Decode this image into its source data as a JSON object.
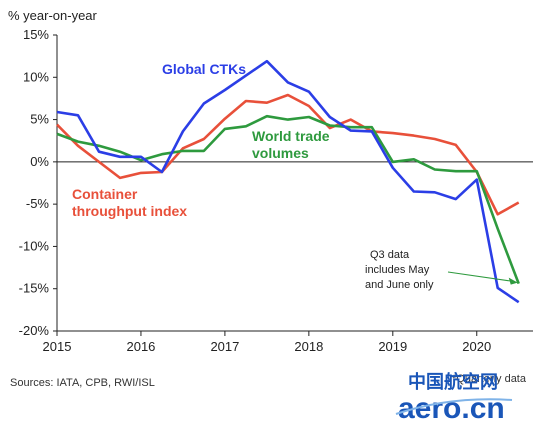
{
  "chart_data": {
    "type": "line",
    "ylabel": "% year-on-year",
    "ylim": [
      -20,
      15
    ],
    "yticks": [
      15,
      10,
      5,
      0,
      -5,
      -10,
      -15,
      -20
    ],
    "ytick_labels": [
      "15%",
      "10%",
      "5%",
      "0%",
      "-5%",
      "-10%",
      "-15%",
      "-20%"
    ],
    "xlim": [
      2015,
      2020.67
    ],
    "xticks": [
      2015,
      2016,
      2017,
      2018,
      2019,
      2020
    ],
    "xtick_labels": [
      "2015",
      "2016",
      "2017",
      "2018",
      "2019",
      "2020"
    ],
    "zero_line": true,
    "grid": false,
    "series": [
      {
        "name": "Global CTKs",
        "color": "#2b3ee6",
        "x": [
          2015.0,
          2015.25,
          2015.5,
          2015.75,
          2016.0,
          2016.25,
          2016.5,
          2016.75,
          2017.0,
          2017.25,
          2017.5,
          2017.75,
          2018.0,
          2018.25,
          2018.5,
          2018.75,
          2019.0,
          2019.25,
          2019.5,
          2019.75,
          2020.0,
          2020.25,
          2020.5
        ],
        "values": [
          5.9,
          5.5,
          1.2,
          0.6,
          0.6,
          -1.2,
          3.6,
          6.9,
          8.5,
          10.2,
          11.9,
          9.4,
          8.3,
          5.3,
          3.7,
          3.6,
          -0.7,
          -3.5,
          -3.6,
          -4.4,
          -2.1,
          -14.9,
          -16.6
        ]
      },
      {
        "name": "Container throughput index",
        "color": "#e8503a",
        "x": [
          2015.0,
          2015.25,
          2015.5,
          2015.75,
          2016.0,
          2016.25,
          2016.5,
          2016.75,
          2017.0,
          2017.25,
          2017.5,
          2017.75,
          2018.0,
          2018.25,
          2018.5,
          2018.75,
          2019.0,
          2019.25,
          2019.5,
          2019.75,
          2020.0,
          2020.25,
          2020.5
        ],
        "values": [
          4.4,
          1.9,
          0.0,
          -1.9,
          -1.3,
          -1.2,
          1.6,
          2.7,
          5.1,
          7.2,
          7.0,
          7.9,
          6.6,
          4.0,
          5.0,
          3.6,
          3.4,
          3.1,
          2.7,
          2.0,
          -1.2,
          -6.2,
          -4.8
        ]
      },
      {
        "name": "World trade volumes",
        "color": "#2e9a3e",
        "x": [
          2015.0,
          2015.25,
          2015.5,
          2015.75,
          2016.0,
          2016.25,
          2016.5,
          2016.75,
          2017.0,
          2017.25,
          2017.5,
          2017.75,
          2018.0,
          2018.25,
          2018.5,
          2018.75,
          2019.0,
          2019.25,
          2019.5,
          2019.75,
          2020.0,
          2020.25,
          2020.5
        ],
        "values": [
          3.3,
          2.4,
          1.9,
          1.2,
          0.2,
          0.9,
          1.3,
          1.3,
          3.9,
          4.2,
          5.4,
          5.0,
          5.3,
          4.3,
          4.1,
          4.1,
          0.0,
          0.3,
          -0.9,
          -1.1,
          -1.1,
          -7.9,
          -14.4
        ]
      }
    ],
    "series_labels": [
      {
        "series": 0,
        "lines": [
          "Global CTKs"
        ]
      },
      {
        "series": 1,
        "lines": [
          "Container",
          "throughput index"
        ]
      },
      {
        "series": 2,
        "lines": [
          "World trade",
          "volumes"
        ]
      }
    ],
    "annotation": {
      "lines": [
        "Q3 data",
        "includes May",
        "and June only"
      ],
      "arrow_to": {
        "x": 2020.5,
        "y": -14.4
      }
    },
    "source": "Sources: IATA, CPB, RWI/ISL",
    "footnote": "*Quarterly data"
  },
  "watermark": {
    "chinese": "中国航空网",
    "domain": "aero.cn",
    "color": "#1a56b8"
  }
}
